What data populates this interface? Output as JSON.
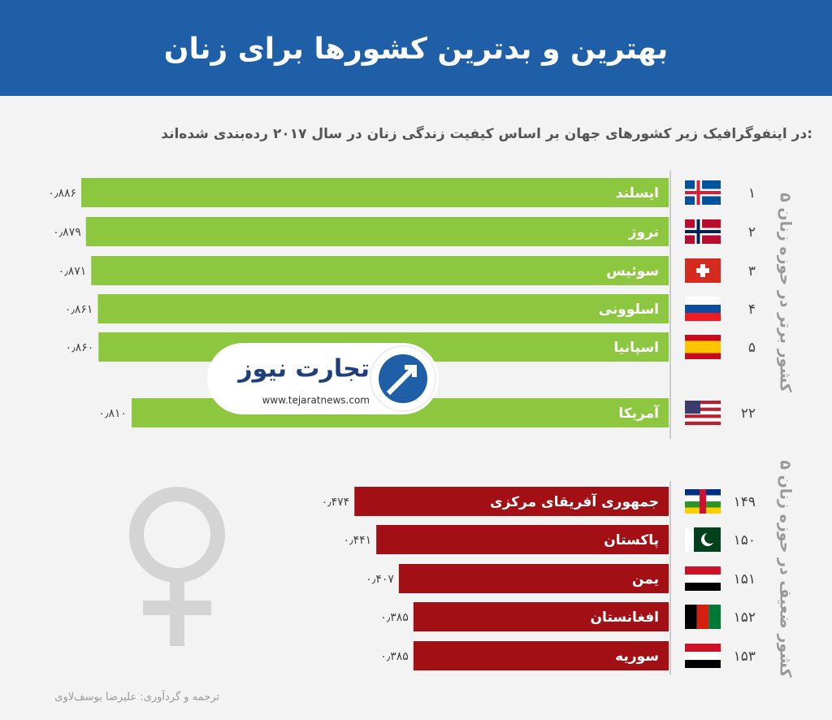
{
  "header": {
    "title": "بهترین و بدترین کشورها برای زنان",
    "subtitle": "در اینفوگرافیک زیر کشورهای جهان بر اساس کیفیت زندگی زنان در سال ۲۰۱۷ رده‌بندی شده‌اند:"
  },
  "logo": {
    "name": "تجارت نیوز",
    "url": "www.tejaratnews.com"
  },
  "credit": "ترجمه و گردآوری: علیرضا یوسف‌لاوی",
  "chart_data": [
    {
      "type": "bar",
      "title": "۵ کشور برتر در حوزه زنان",
      "color": "#8dc63f",
      "categories": [
        "ایسلند",
        "نروژ",
        "سوئیس",
        "اسلوونی",
        "اسپانیا",
        "آمریکا"
      ],
      "ranks": [
        "۱",
        "۲",
        "۳",
        "۴",
        "۵",
        "۲۲"
      ],
      "values": [
        0.886,
        0.879,
        0.871,
        0.861,
        0.86,
        0.81
      ],
      "value_labels": [
        "۰٫۸۸۶",
        "۰٫۸۷۹",
        "۰٫۸۷۱",
        "۰٫۸۶۱",
        "۰٫۸۶۰",
        "۰٫۸۱۰"
      ]
    },
    {
      "type": "bar",
      "title": "۵ کشور ضعیف در حوزه زنان",
      "color": "#a20f14",
      "categories": [
        "جمهوری آفریقای مرکزی",
        "پاکستان",
        "یمن",
        "افغانستان",
        "سوریه"
      ],
      "ranks": [
        "۱۴۹",
        "۱۵۰",
        "۱۵۱",
        "۱۵۲",
        "۱۵۳"
      ],
      "values": [
        0.474,
        0.441,
        0.407,
        0.385,
        0.385
      ],
      "value_labels": [
        "۰٫۴۷۴",
        "۰٫۴۴۱",
        "۰٫۴۰۷",
        "۰٫۳۸۵",
        "۰٫۳۸۵"
      ]
    }
  ]
}
